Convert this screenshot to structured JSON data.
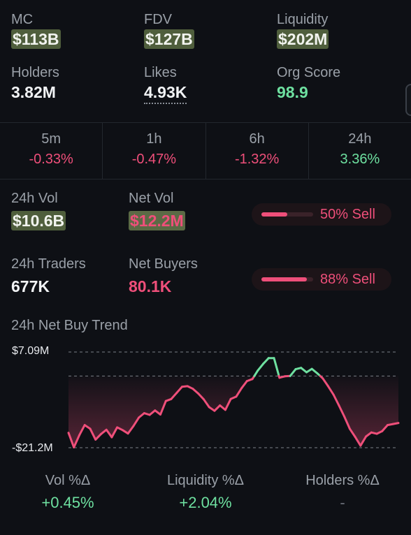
{
  "stats": {
    "mc_label": "MC",
    "mc_value": "$113B",
    "fdv_label": "FDV",
    "fdv_value": "$127B",
    "liq_label": "Liquidity",
    "liq_value": "$202M",
    "holders_label": "Holders",
    "holders_value": "3.82M",
    "likes_label": "Likes",
    "likes_value": "4.93K",
    "org_label": "Org Score",
    "org_value": "98.9"
  },
  "timeframes": [
    {
      "label": "5m",
      "value": "-0.33%"
    },
    {
      "label": "1h",
      "value": "-0.47%"
    },
    {
      "label": "6h",
      "value": "-1.32%"
    },
    {
      "label": "24h",
      "value": "3.36%"
    }
  ],
  "volume": {
    "vol_label": "24h Vol",
    "vol_value": "$10.6B",
    "netvol_label": "Net Vol",
    "netvol_value": "$12.2M",
    "vol_pill": "50% Sell",
    "vol_pill_pct": 50,
    "traders_label": "24h Traders",
    "traders_value": "677K",
    "netbuyers_label": "Net Buyers",
    "netbuyers_value": "80.1K",
    "traders_pill": "88% Sell",
    "traders_pill_pct": 88
  },
  "trend": {
    "title": "24h Net Buy Trend",
    "y_max_label": "$7.09M",
    "y_min_label": "-$21.2M"
  },
  "chart_data": {
    "type": "area",
    "title": "24h Net Buy Trend",
    "ylim": [
      -21.2,
      7.09
    ],
    "ylabels": [
      "$7.09M",
      "-$21.2M"
    ],
    "values": [
      -16.8,
      -21.1,
      -17.5,
      -14.5,
      -15.6,
      -18.8,
      -17.2,
      -15.9,
      -18.1,
      -15.2,
      -16.0,
      -17.0,
      -14.8,
      -12.3,
      -11.0,
      -11.5,
      -10.2,
      -11.4,
      -7.4,
      -6.8,
      -5.0,
      -3.2,
      -3.0,
      -3.8,
      -5.2,
      -6.9,
      -9.2,
      -10.3,
      -8.7,
      -10.0,
      -6.8,
      -6.1,
      -3.6,
      -1.5,
      -0.9,
      1.6,
      3.6,
      5.3,
      5.3,
      -0.5,
      -0.1,
      0.0,
      2.0,
      2.4,
      1.1,
      2.1,
      0.8,
      -0.7,
      -3.0,
      -5.5,
      -8.7,
      -12.0,
      -15.6,
      -18.0,
      -20.6,
      -17.9,
      -16.7,
      -17.1,
      -16.3,
      -14.5,
      -14.2,
      -13.9
    ],
    "positive_color": "#6ee0a0",
    "negative_color": "#ef4f7a"
  },
  "footer": [
    {
      "label": "Vol %Δ",
      "value": "+0.45%"
    },
    {
      "label": "Liquidity %Δ",
      "value": "+2.04%"
    },
    {
      "label": "Holders %Δ",
      "value": "-"
    }
  ]
}
